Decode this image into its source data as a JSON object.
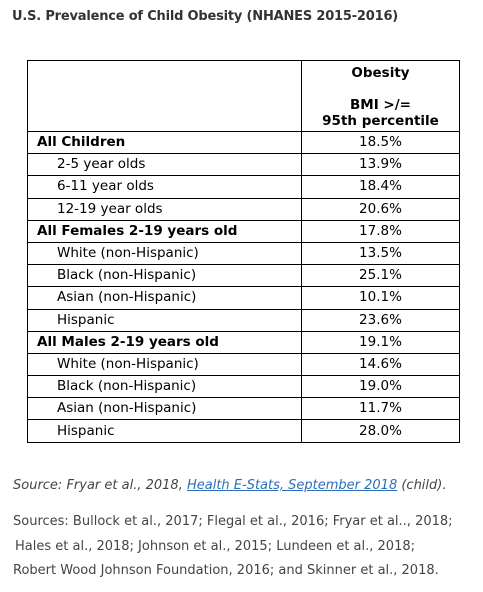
{
  "title": "U.S. Prevalence of Child Obesity (NHANES 2015-2016)",
  "table": {
    "header": [
      "Obesity",
      "BMI >/=",
      "95th percentile"
    ],
    "groups": [
      {
        "label": "All Children",
        "value": "18.5%",
        "rows": [
          [
            "2-5 year olds",
            "13.9%"
          ],
          [
            "6-11 year olds",
            "18.4%"
          ],
          [
            "12-19 year olds",
            "20.6%"
          ]
        ]
      },
      {
        "label": "All Females 2-19 years old",
        "value": "17.8%",
        "rows": [
          [
            "White (non-Hispanic)",
            "13.5%"
          ],
          [
            "Black (non-Hispanic)",
            "25.1%"
          ],
          [
            "Asian (non-Hispanic)",
            "10.1%"
          ],
          [
            "Hispanic",
            "23.6%"
          ]
        ]
      },
      {
        "label": "All Males 2-19 years old",
        "value": "19.1%",
        "rows": [
          [
            "White (non-Hispanic)",
            "14.6%"
          ],
          [
            "Black (non-Hispanic)",
            "19.0%"
          ],
          [
            "Asian (non-Hispanic)",
            "11.7%"
          ],
          [
            "Hispanic",
            "28.0%"
          ]
        ]
      }
    ]
  },
  "source": {
    "prefix": "Source: Fryar et al., 2018, ",
    "link": "Health E-Stats, September 2018",
    "suffix": " (child)."
  },
  "sources": [
    "Sources: Bullock et al., 2017; Flegal et al., 2016; Fryar et al.., 2018;",
    "Hales et al., 2018; Johnson et al., 2015; Lundeen et al., 2018;",
    "Robert Wood  Johnson Foundation, 2016; and Skinner et al., 2018."
  ]
}
